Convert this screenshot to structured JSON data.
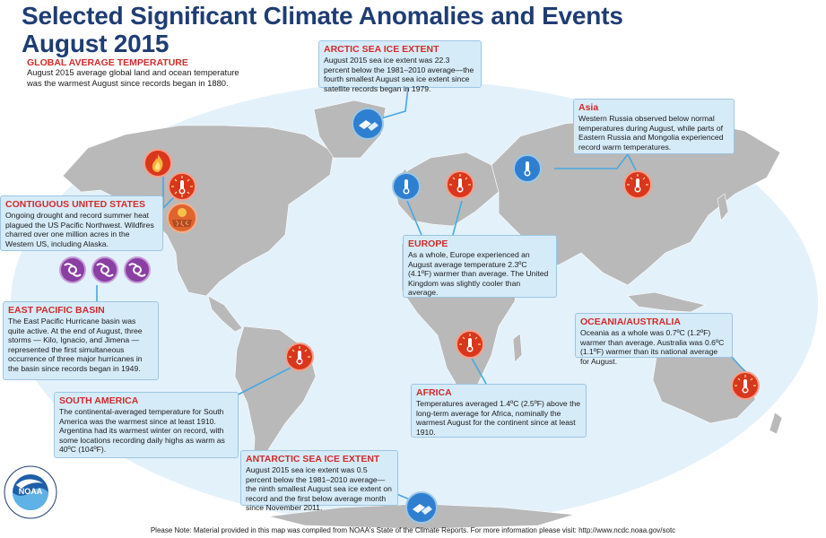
{
  "title_line1": "Selected Significant Climate Anomalies and Events",
  "title_line2": "August 2015",
  "global": {
    "heading": "GLOBAL AVERAGE TEMPERATURE",
    "text": "August 2015 average global land and ocean temperature was the warmest August since records began in 1880."
  },
  "boxes": {
    "arctic": {
      "heading": "ARCTIC SEA ICE EXTENT",
      "text": "August 2015 sea ice extent was 22.3 percent below the 1981–2010 average—the fourth smallest August sea ice extent since satellite records began in 1979."
    },
    "asia": {
      "heading": "Asia",
      "text": "Western Russia observed below normal temperatures during August, while parts of Eastern Russia and Mongolia experienced record warm temperatures."
    },
    "us": {
      "heading": "CONTIGUOUS UNITED STATES",
      "text": "Ongoing drought and record summer heat plagued the US Pacific Northwest. Wildfires charred over one million acres in the Western US, including Alaska."
    },
    "europe": {
      "heading": "EUROPE",
      "text": "As a whole, Europe experienced an August average temperature 2.3ºC (4.1ºF) warmer than average. The United Kingdom was slightly cooler than average."
    },
    "epac": {
      "heading": "EAST PACIFIC BASIN",
      "text": "The East Pacific Hurricane basin was quite active. At the end of August, three storms — Kilo, Ignacio, and Jimena — represented the first simultaneous occurrence of three major hurricanes in the basin since records began in 1949."
    },
    "oceania": {
      "heading": "OCEANIA/AUSTRALIA",
      "text": "Oceania as a whole was 0.7ºC (1.2ºF) warmer than average. Australia was 0.6ºC (1.1ºF) warmer than its national average for August."
    },
    "africa": {
      "heading": "AFRICA",
      "text": "Temperatures averaged 1.4ºC (2.5ºF) above the long-term average for Africa, nominally the warmest August for the continent since at least 1910."
    },
    "sa": {
      "heading": "SOUTH AMERICA",
      "text": "The continental-averaged temperature for South America was the warmest since at least 1910. Argentina had its warmest winter on record, with some locations recording daily highs as warm as 40ºC (104ºF)."
    },
    "antarctic": {
      "heading": "ANTARCTIC SEA ICE EXTENT",
      "text": "August 2015 sea ice extent was 0.5 percent below the 1981–2010 average—the ninth smallest August sea ice extent on record and the first below average month since November 2011."
    }
  },
  "footer": "Please Note: Material provided in this map was compiled from NOAA's State of the Climate Reports. For more information please visit: http://www.ncdc.noaa.gov/sotc",
  "logo": {
    "text": "NOAA",
    "ring_text": "NATIONAL OCEANIC AND ATMOSPHERIC ADMINISTRATION · U.S. DEPARTMENT OF COMMERCE"
  },
  "icons": [
    {
      "name": "wildfire-icon",
      "type": "fire"
    },
    {
      "name": "warm-thermometer-icon",
      "type": "warm"
    },
    {
      "name": "drought-icon",
      "type": "drought"
    },
    {
      "name": "hurricane-icon",
      "type": "hurricane"
    },
    {
      "name": "cool-thermometer-icon",
      "type": "cool"
    },
    {
      "name": "sea-ice-icon",
      "type": "ice"
    }
  ],
  "colors": {
    "ocean": "#e3f1fb",
    "land": "#b9b9b9",
    "box_fill": "#d6ebf8",
    "heading_red": "#d22b2b",
    "title_navy": "#1f3d73",
    "leader": "#4aa7e0",
    "warm": "#d9361e",
    "cool": "#2f7fd1",
    "hurricane": "#8a3fa3"
  }
}
